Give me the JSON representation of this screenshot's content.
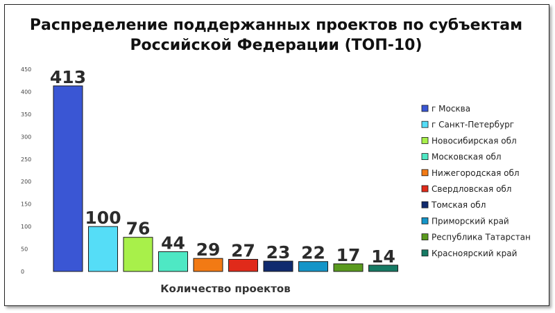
{
  "chart_data": {
    "type": "bar",
    "title_line1": "Распределение поддержанных проектов по субъектам",
    "title_line2": "Российской Федерации (ТОП-10)",
    "xlabel": "Количество проектов",
    "ylabel": "",
    "ylim": [
      0,
      450
    ],
    "yticks": [
      0,
      50,
      100,
      150,
      200,
      250,
      300,
      350,
      400,
      450
    ],
    "grid": false,
    "legend_position": "right",
    "categories": [
      "г Москва",
      "г Санкт-Петербург",
      "Новосибирская обл",
      "Московская обл",
      "Нижегородская обл",
      "Свердловская обл",
      "Томская обл",
      "Приморский край",
      "Республика Татарстан",
      "Красноярский край"
    ],
    "values": [
      413,
      100,
      76,
      44,
      29,
      27,
      23,
      22,
      17,
      14
    ],
    "colors": [
      "#3a56d4",
      "#55ddf7",
      "#a8f04a",
      "#4ee8c4",
      "#f27a14",
      "#e02a1a",
      "#102a6e",
      "#1595c8",
      "#5a9a1e",
      "#167a64"
    ]
  }
}
